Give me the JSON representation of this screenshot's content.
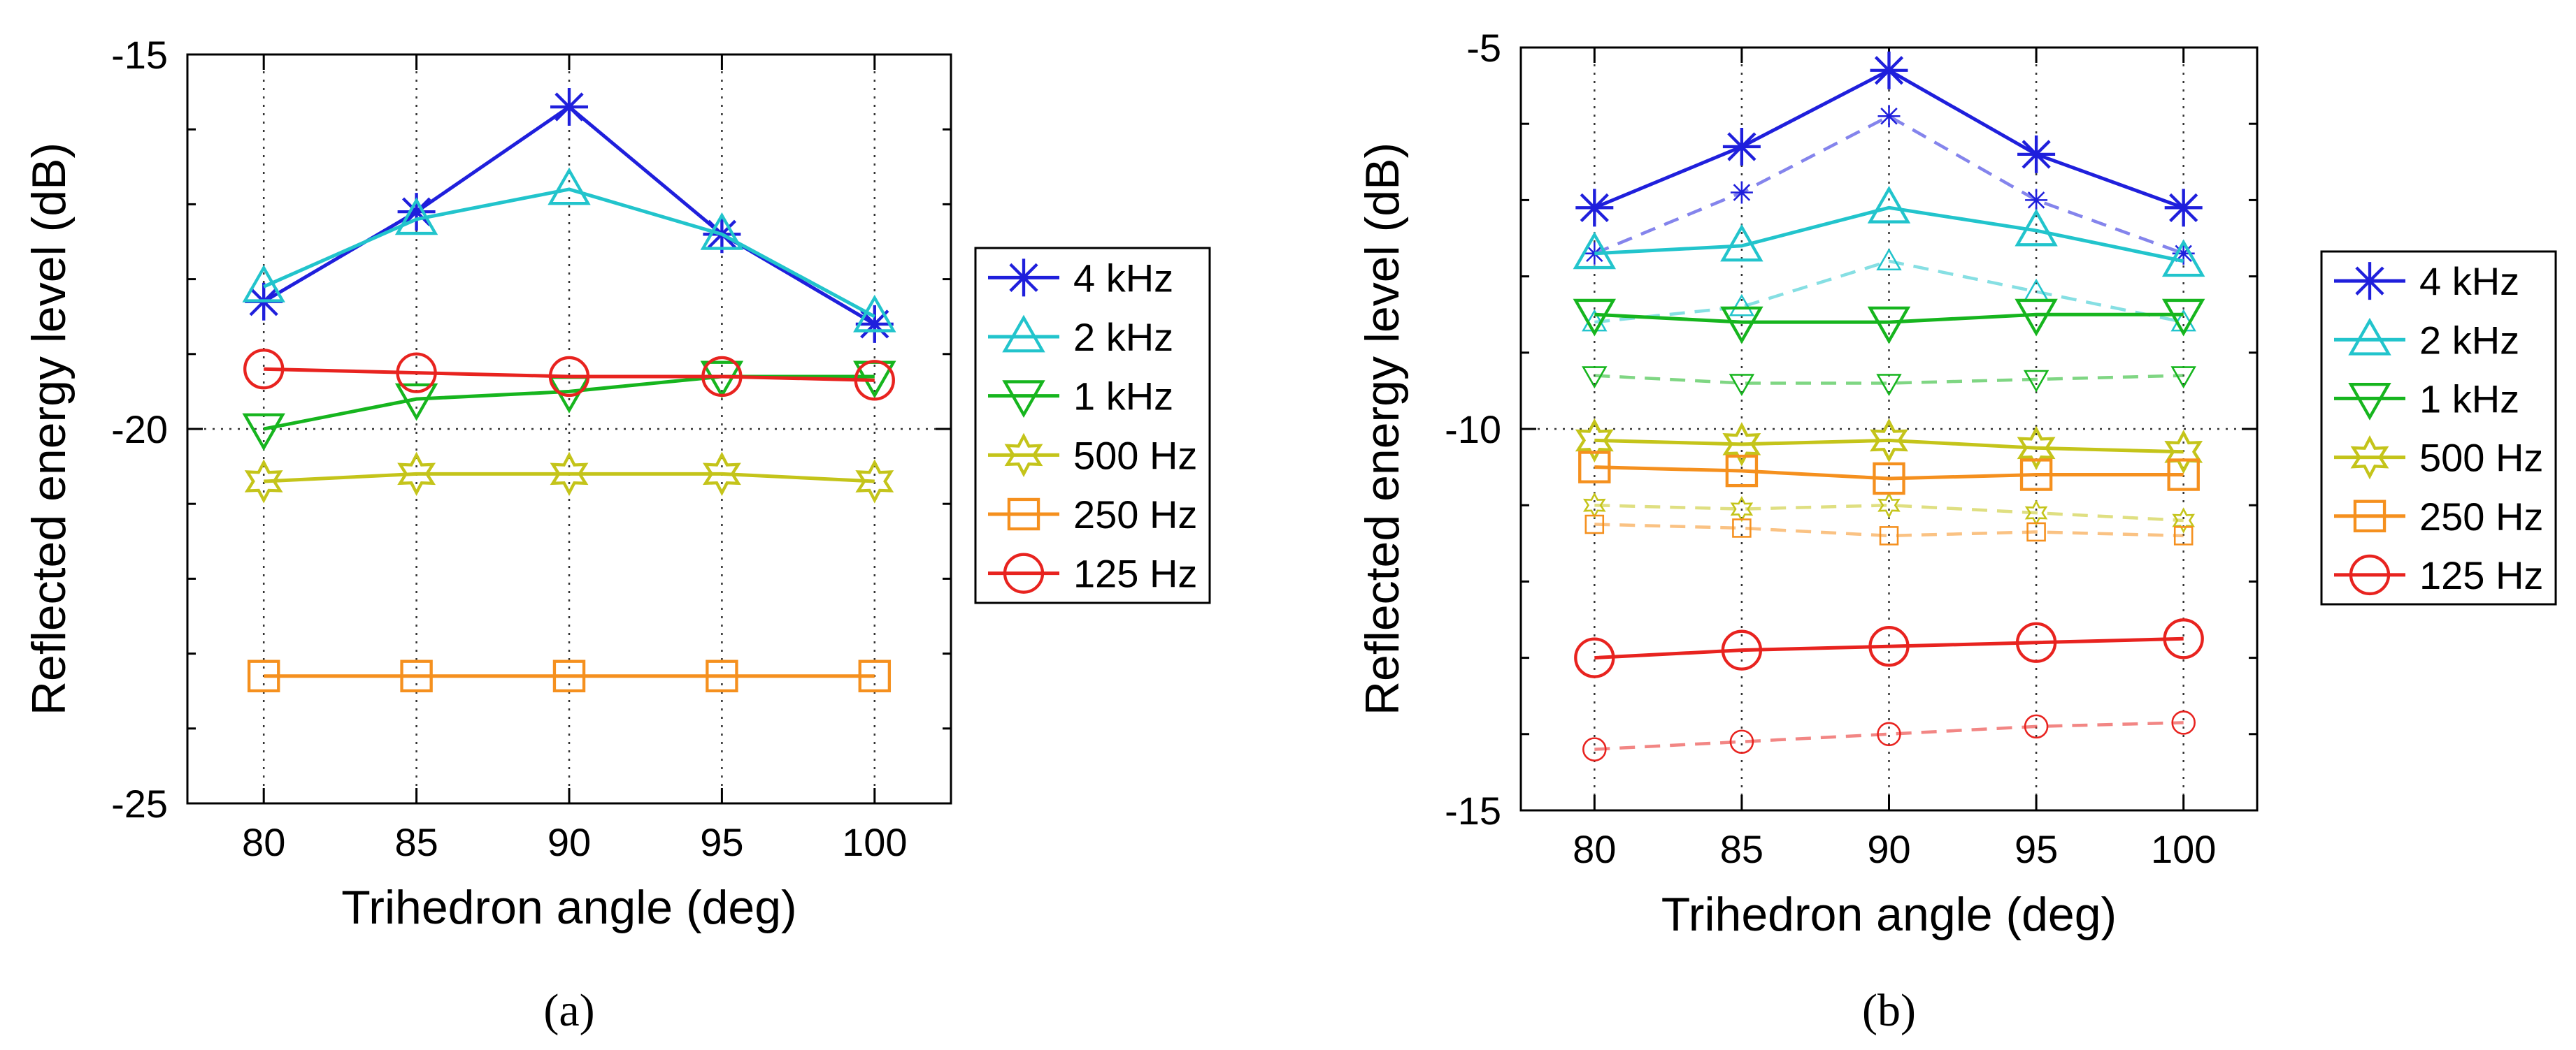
{
  "chart_data": [
    {
      "type": "line",
      "panel_label": "a",
      "caption": "(a)",
      "xlabel": "Trihedron angle (deg)",
      "ylabel": "Reflected energy level (dB)",
      "x": [
        80,
        85,
        90,
        95,
        100
      ],
      "xticks": [
        "80",
        "85",
        "90",
        "95",
        "100"
      ],
      "xlim": [
        77.5,
        102.5
      ],
      "ylim": [
        -25,
        -15
      ],
      "yticks": [
        -25,
        -20,
        -15
      ],
      "ytick_labels": [
        "-25",
        "-20",
        "-15"
      ],
      "grid": "dotted",
      "legend_position": "right",
      "series": [
        {
          "name": "4 kHz",
          "marker": "asterisk",
          "color": "#1f1fdc",
          "values": [
            -18.3,
            -17.1,
            -15.7,
            -17.4,
            -18.6
          ]
        },
        {
          "name": "2 kHz",
          "marker": "triangle-up",
          "color": "#22c4cc",
          "values": [
            -18.1,
            -17.2,
            -16.8,
            -17.4,
            -18.5
          ]
        },
        {
          "name": "1 kHz",
          "marker": "triangle-down",
          "color": "#16b51e",
          "values": [
            -20.0,
            -19.6,
            -19.5,
            -19.3,
            -19.3
          ]
        },
        {
          "name": "500 Hz",
          "marker": "hexagram",
          "color": "#c4c41a",
          "values": [
            -20.7,
            -20.6,
            -20.6,
            -20.6,
            -20.7
          ]
        },
        {
          "name": "250 Hz",
          "marker": "square",
          "color": "#f5901e",
          "values": [
            -23.3,
            -23.3,
            -23.3,
            -23.3,
            -23.3
          ]
        },
        {
          "name": "125 Hz",
          "marker": "circle",
          "color": "#e8231f",
          "values": [
            -19.2,
            -19.25,
            -19.3,
            -19.3,
            -19.35
          ]
        }
      ]
    },
    {
      "type": "line",
      "panel_label": "b",
      "caption": "(b)",
      "xlabel": "Trihedron angle (deg)",
      "ylabel": "Reflected energy level (dB)",
      "x": [
        80,
        85,
        90,
        95,
        100
      ],
      "xticks": [
        "80",
        "85",
        "90",
        "95",
        "100"
      ],
      "xlim": [
        77.5,
        102.5
      ],
      "ylim": [
        -15,
        -5
      ],
      "yticks": [
        -15,
        -10,
        -5
      ],
      "ytick_labels": [
        "-15",
        "-10",
        "-5"
      ],
      "grid": "dotted",
      "legend_position": "right",
      "series": [
        {
          "name": "4 kHz",
          "marker": "asterisk",
          "color": "#1f1fdc",
          "values": [
            -7.1,
            -6.3,
            -5.3,
            -6.4,
            -7.1
          ],
          "dashed_values": [
            -7.7,
            -6.9,
            -5.9,
            -7.0,
            -7.7
          ]
        },
        {
          "name": "2 kHz",
          "marker": "triangle-up",
          "color": "#22c4cc",
          "values": [
            -7.7,
            -7.6,
            -7.1,
            -7.4,
            -7.8
          ],
          "dashed_values": [
            -8.6,
            -8.4,
            -7.8,
            -8.2,
            -8.6
          ]
        },
        {
          "name": "1 kHz",
          "marker": "triangle-down",
          "color": "#16b51e",
          "values": [
            -8.5,
            -8.6,
            -8.6,
            -8.5,
            -8.5
          ],
          "dashed_values": [
            -9.3,
            -9.4,
            -9.4,
            -9.35,
            -9.3
          ]
        },
        {
          "name": "500 Hz",
          "marker": "hexagram",
          "color": "#c4c41a",
          "values": [
            -10.15,
            -10.2,
            -10.15,
            -10.25,
            -10.3
          ],
          "dashed_values": [
            -11.0,
            -11.05,
            -11.0,
            -11.1,
            -11.2
          ]
        },
        {
          "name": "250 Hz",
          "marker": "square",
          "color": "#f5901e",
          "values": [
            -10.5,
            -10.55,
            -10.65,
            -10.6,
            -10.6
          ],
          "dashed_values": [
            -11.25,
            -11.3,
            -11.4,
            -11.35,
            -11.4
          ]
        },
        {
          "name": "125 Hz",
          "marker": "circle",
          "color": "#e8231f",
          "values": [
            -13.0,
            -12.9,
            -12.85,
            -12.8,
            -12.75
          ],
          "dashed_values": [
            -14.2,
            -14.1,
            -14.0,
            -13.9,
            -13.85
          ]
        }
      ]
    }
  ]
}
